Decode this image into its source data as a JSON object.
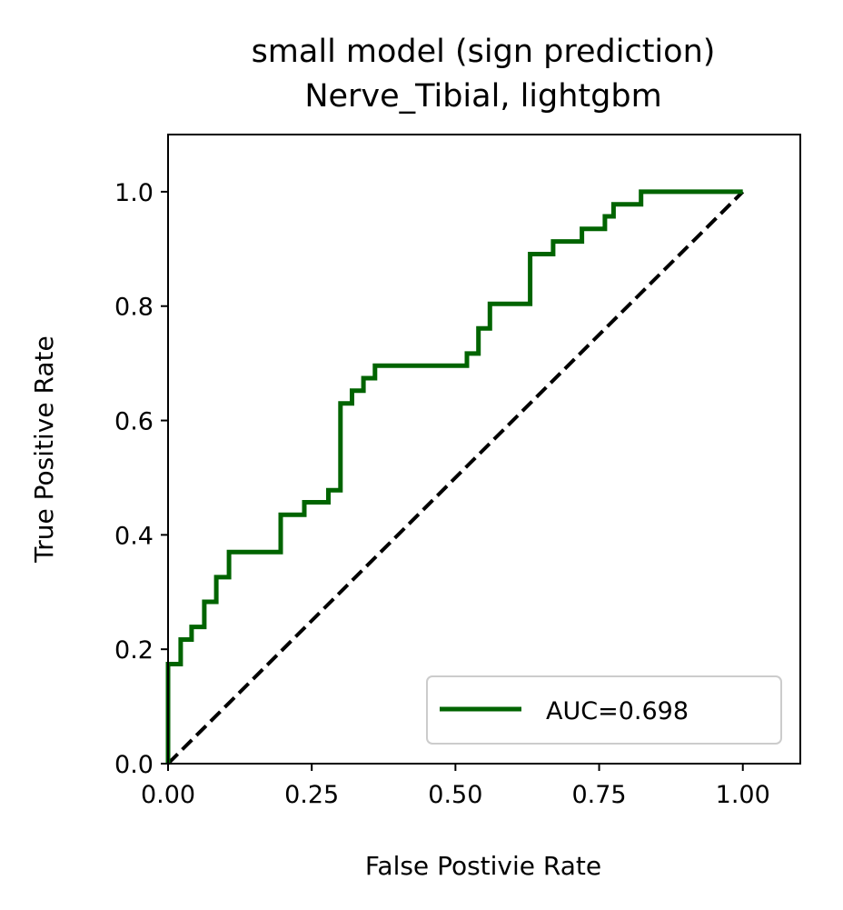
{
  "chart_data": {
    "type": "line",
    "title": "small model (sign prediction)",
    "subtitle": "Nerve_Tibial, lightgbm",
    "xlabel": "False Postivie Rate",
    "ylabel": "True Positive Rate",
    "xlim": [
      0.0,
      1.1
    ],
    "ylim": [
      0.0,
      1.1
    ],
    "x_ticks": [
      "0.00",
      "0.25",
      "0.50",
      "0.75",
      "1.00"
    ],
    "x_tick_values": [
      0.0,
      0.25,
      0.5,
      0.75,
      1.0
    ],
    "y_ticks": [
      "0.0",
      "0.2",
      "0.4",
      "0.6",
      "0.8",
      "1.0"
    ],
    "y_tick_values": [
      0.0,
      0.2,
      0.4,
      0.6,
      0.8,
      1.0
    ],
    "grid": false,
    "legend_position": "lower-right",
    "series": [
      {
        "name": "AUC=0.698",
        "color": "#006400",
        "style": "solid",
        "points": [
          [
            0.0,
            0.0
          ],
          [
            0.0,
            0.174
          ],
          [
            0.022,
            0.174
          ],
          [
            0.022,
            0.217
          ],
          [
            0.041,
            0.217
          ],
          [
            0.041,
            0.239
          ],
          [
            0.063,
            0.239
          ],
          [
            0.063,
            0.283
          ],
          [
            0.084,
            0.283
          ],
          [
            0.084,
            0.326
          ],
          [
            0.106,
            0.326
          ],
          [
            0.106,
            0.37
          ],
          [
            0.196,
            0.37
          ],
          [
            0.196,
            0.435
          ],
          [
            0.237,
            0.435
          ],
          [
            0.237,
            0.457
          ],
          [
            0.279,
            0.457
          ],
          [
            0.279,
            0.478
          ],
          [
            0.3,
            0.478
          ],
          [
            0.3,
            0.63
          ],
          [
            0.32,
            0.63
          ],
          [
            0.32,
            0.652
          ],
          [
            0.34,
            0.652
          ],
          [
            0.34,
            0.674
          ],
          [
            0.36,
            0.674
          ],
          [
            0.36,
            0.696
          ],
          [
            0.52,
            0.696
          ],
          [
            0.52,
            0.717
          ],
          [
            0.54,
            0.717
          ],
          [
            0.54,
            0.761
          ],
          [
            0.56,
            0.761
          ],
          [
            0.56,
            0.804
          ],
          [
            0.63,
            0.804
          ],
          [
            0.63,
            0.891
          ],
          [
            0.67,
            0.891
          ],
          [
            0.67,
            0.913
          ],
          [
            0.72,
            0.913
          ],
          [
            0.72,
            0.935
          ],
          [
            0.76,
            0.935
          ],
          [
            0.76,
            0.957
          ],
          [
            0.775,
            0.957
          ],
          [
            0.775,
            0.978
          ],
          [
            0.823,
            0.978
          ],
          [
            0.823,
            1.0
          ],
          [
            1.0,
            1.0
          ]
        ]
      },
      {
        "name": "",
        "color": "#000000",
        "style": "dashed",
        "points": [
          [
            0.0,
            0.0
          ],
          [
            1.0,
            1.0
          ]
        ]
      }
    ]
  }
}
